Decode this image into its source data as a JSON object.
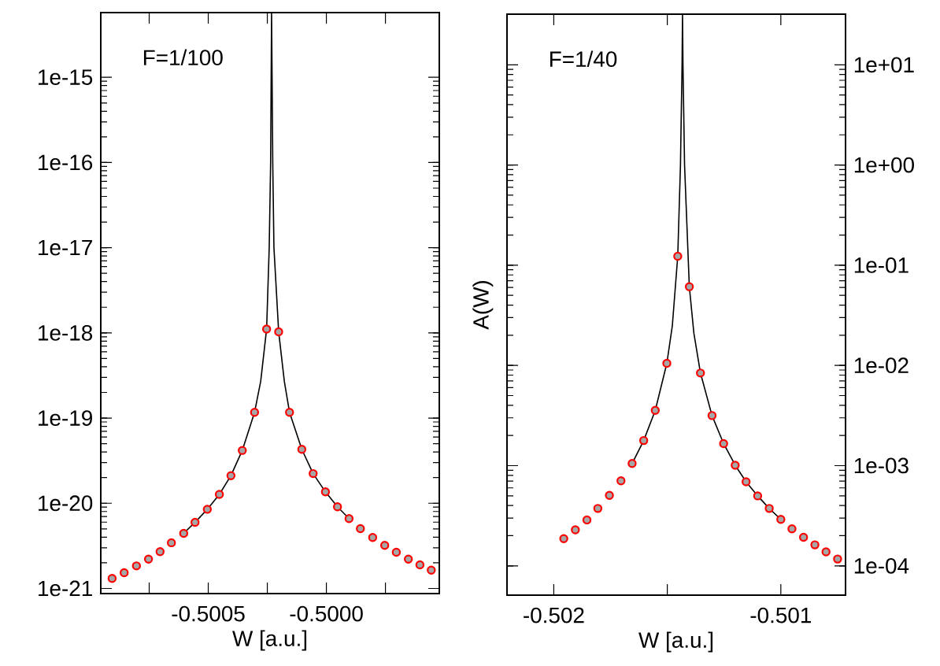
{
  "chart_data": [
    {
      "type": "scatter",
      "xlabel": "W [a.u.]",
      "annotations": [
        "F=1/100"
      ],
      "log": "y",
      "xlim": [
        -0.500955,
        -0.499522
      ],
      "ylim": [
        8.7e-22,
        5.75e-15
      ],
      "xticks": [
        {
          "value": -0.50075,
          "label": null
        },
        -0.5005,
        {
          "value": -0.50025,
          "label": null
        },
        {
          "value": -0.5,
          "label": "-0.5000"
        },
        {
          "value": -0.49975,
          "label": null
        }
      ],
      "yticks": [
        {
          "value": 1e-21,
          "label": "1e-21"
        },
        {
          "value": 1e-20,
          "label": "1e-20"
        },
        {
          "value": 1e-19,
          "label": "1e-19"
        },
        {
          "value": 1e-18,
          "label": "1e-18"
        },
        {
          "value": 1e-17,
          "label": "1e-17"
        },
        {
          "value": 1e-16,
          "label": "1e-16"
        },
        {
          "value": 1e-15,
          "label": "1e-15"
        }
      ],
      "series": [
        {
          "type": "line",
          "color": "#000000",
          "marker": "none",
          "line_style": "solid",
          "x": [
            -0.500604,
            -0.500556,
            -0.500504,
            -0.500453,
            -0.500404,
            -0.500356,
            -0.500304,
            -0.500278,
            -0.500253,
            -0.500242,
            -0.500236,
            -0.500232,
            -0.500227,
            -0.500222,
            -0.500202,
            -0.500178,
            -0.500156,
            -0.500104,
            -0.500056,
            -0.500004,
            -0.499953,
            -0.499904
          ],
          "values": [
            4.44e-21,
            5.97e-21,
            8.5e-21,
            1.27e-20,
            2.11e-20,
            4.17e-20,
            1.17e-19,
            2.7e-19,
            1.11e-18,
            1e-17,
            1e-16,
            5.75e-15,
            1e-16,
            1e-17,
            1.03e-18,
            2.7e-19,
            1.17e-19,
            4.3e-20,
            2.23e-20,
            1.36e-20,
            9.1e-21,
            6.6e-21
          ]
        },
        {
          "color": "#ff0000",
          "marker": "circle",
          "x": [
            -0.500907,
            -0.500856,
            -0.500804,
            -0.500753,
            -0.500704,
            -0.500656,
            -0.500604,
            -0.500556,
            -0.500504,
            -0.500453,
            -0.500404,
            -0.500356,
            -0.500304,
            -0.500253,
            -0.500202,
            -0.500156,
            -0.500104,
            -0.500056,
            -0.500004,
            -0.499953,
            -0.499904,
            -0.499856,
            -0.499804,
            -0.499753,
            -0.499704,
            -0.499653,
            -0.499604,
            -0.499556
          ],
          "values": [
            1.31e-21,
            1.53e-21,
            1.84e-21,
            2.21e-21,
            2.7e-21,
            3.44e-21,
            4.44e-21,
            5.97e-21,
            8.5e-21,
            1.27e-20,
            2.11e-20,
            4.17e-20,
            1.17e-19,
            1.11e-18,
            1.03e-18,
            1.17e-19,
            4.3e-20,
            2.23e-20,
            1.36e-20,
            9.1e-21,
            6.6e-21,
            5.04e-21,
            3.96e-21,
            3.2e-21,
            2.66e-21,
            2.21e-21,
            1.89e-21,
            1.64e-21
          ]
        }
      ]
    },
    {
      "type": "scatter",
      "xlabel": "W [a.u.]",
      "ylabel": "A(W)",
      "annotations": [
        "F=1/40"
      ],
      "log": "y",
      "xlim": [
        -0.502206,
        -0.500715
      ],
      "ylim": [
        5.1e-05,
        32
      ],
      "xticks": [
        -0.502,
        {
          "value": -0.5015,
          "label": null
        },
        -0.501
      ],
      "yticks": [
        {
          "value": 0.0001,
          "label": "1e-04"
        },
        {
          "value": 0.001,
          "label": "1e-03"
        },
        {
          "value": 0.01,
          "label": "1e-02"
        },
        {
          "value": 0.1,
          "label": "1e-01"
        },
        {
          "value": 1,
          "label": "1e+00"
        },
        {
          "value": 10,
          "label": "1e+01"
        }
      ],
      "series": [
        {
          "type": "line",
          "color": "#000000",
          "marker": "none",
          "line_style": "solid",
          "x": [
            -0.501655,
            -0.501604,
            -0.501553,
            -0.501502,
            -0.501478,
            -0.501454,
            -0.501442,
            -0.501435,
            -0.501433,
            -0.501431,
            -0.501424,
            -0.501403,
            -0.501383,
            -0.501354,
            -0.501303,
            -0.501252,
            -0.501201,
            -0.501153,
            -0.501102,
            -0.501051,
            -0.501
          ],
          "values": [
            0.00105,
            0.00178,
            0.00356,
            0.0105,
            0.0247,
            0.123,
            1,
            10,
            32,
            10,
            1,
            0.061,
            0.021,
            0.0084,
            0.00316,
            0.00166,
            0.00101,
            0.00069,
            0.000499,
            0.000374,
            0.000291
          ]
        },
        {
          "color": "#ff0000",
          "marker": "circle",
          "x": [
            -0.501956,
            -0.501905,
            -0.501854,
            -0.501806,
            -0.501755,
            -0.501704,
            -0.501655,
            -0.501604,
            -0.501553,
            -0.501502,
            -0.501454,
            -0.501403,
            -0.501354,
            -0.501303,
            -0.501252,
            -0.501201,
            -0.501153,
            -0.501102,
            -0.501051,
            -0.501,
            -0.500951,
            -0.5009,
            -0.50085,
            -0.500801,
            -0.50075
          ],
          "values": [
            0.000187,
            0.000229,
            0.000287,
            0.000374,
            0.000505,
            0.000706,
            0.00105,
            0.00178,
            0.00356,
            0.0105,
            0.123,
            0.061,
            0.0084,
            0.00316,
            0.00166,
            0.00101,
            0.00069,
            0.000499,
            0.000374,
            0.000291,
            0.000234,
            0.000193,
            0.000162,
            0.000138,
            0.000117
          ]
        }
      ]
    }
  ]
}
